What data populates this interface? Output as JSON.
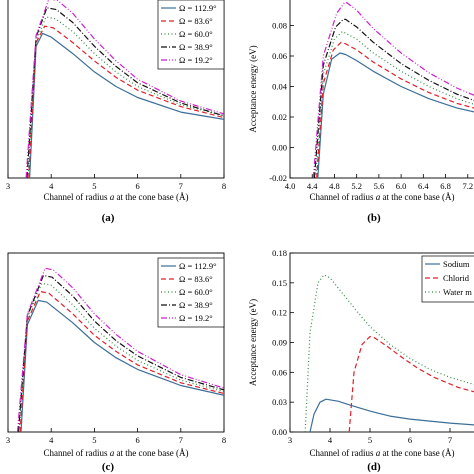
{
  "chart_data": [
    {
      "panel_label": "(a)",
      "type": "line",
      "xlabel_parts": [
        "Channel of radius ",
        "a",
        " at the cone base (Å)"
      ],
      "ylabel": "",
      "xlim": [
        3,
        8
      ],
      "ylim": [
        0,
        0.1
      ],
      "x_ticks": [
        3,
        4,
        5,
        6,
        7,
        8
      ],
      "x_tick_labels": [
        "3",
        "4",
        "5",
        "6",
        "7",
        "8"
      ],
      "y_ticks": [],
      "y_tick_labels": [],
      "legend": "top-right",
      "series": [
        {
          "name": "Ω = 112.9°",
          "color": "#3c6e98",
          "dash": "",
          "x": [
            3.5,
            3.65,
            3.8,
            4.0,
            4.5,
            5.0,
            5.5,
            6.0,
            7.0,
            8.0
          ],
          "y": [
            0.0,
            0.072,
            0.079,
            0.077,
            0.068,
            0.058,
            0.05,
            0.044,
            0.036,
            0.032
          ]
        },
        {
          "name": "Ω = 83.6°",
          "color": "#e0202a",
          "dash": "5,3",
          "x": [
            3.48,
            3.65,
            3.85,
            4.05,
            4.5,
            5.0,
            5.5,
            6.0,
            7.0,
            8.0
          ],
          "y": [
            0.0,
            0.074,
            0.083,
            0.082,
            0.074,
            0.064,
            0.055,
            0.048,
            0.039,
            0.033
          ]
        },
        {
          "name": "Ω = 60.0°",
          "color": "#2e8b3e",
          "dash": "1,2.5",
          "x": [
            3.46,
            3.65,
            3.88,
            4.1,
            4.5,
            5.0,
            5.5,
            6.0,
            7.0,
            8.0
          ],
          "y": [
            0.0,
            0.075,
            0.088,
            0.087,
            0.08,
            0.068,
            0.058,
            0.05,
            0.04,
            0.034
          ]
        },
        {
          "name": "Ω = 38.9°",
          "color": "#111111",
          "dash": "6,2,1,2",
          "x": [
            3.44,
            3.65,
            3.9,
            4.12,
            4.5,
            5.0,
            5.5,
            6.0,
            7.0,
            8.0
          ],
          "y": [
            0.0,
            0.077,
            0.093,
            0.092,
            0.085,
            0.072,
            0.061,
            0.052,
            0.041,
            0.034
          ]
        },
        {
          "name": "Ω = 19.2°",
          "color": "#cc22cc",
          "dash": "6,2,1,2,1,2",
          "x": [
            3.42,
            3.65,
            3.95,
            4.15,
            4.5,
            5.0,
            5.5,
            6.0,
            7.0,
            8.0
          ],
          "y": [
            0.0,
            0.078,
            0.098,
            0.097,
            0.09,
            0.076,
            0.064,
            0.054,
            0.042,
            0.035
          ]
        }
      ]
    },
    {
      "panel_label": "(b)",
      "type": "line",
      "xlabel_parts": [
        "Channel of radius ",
        "a",
        " at the cone base (Å)"
      ],
      "ylabel": "Acceptance energy (eV)",
      "xlim": [
        4.0,
        7.6
      ],
      "ylim": [
        -0.02,
        0.1
      ],
      "x_ticks": [
        4.0,
        4.4,
        4.8,
        5.2,
        5.6,
        6.0,
        6.4,
        6.8,
        7.2
      ],
      "x_tick_labels": [
        "4.0",
        "4.4",
        "4.8",
        "5.2",
        "5.6",
        "6.0",
        "6.4",
        "6.8",
        "7.2"
      ],
      "y_ticks": [
        -0.02,
        0.0,
        0.02,
        0.04,
        0.06,
        0.08,
        0.1
      ],
      "y_tick_labels": [
        "-0.02",
        "0.00",
        "0.02",
        "0.04",
        "0.06",
        "0.08",
        "0.1"
      ],
      "legend": "top-right",
      "series": [
        {
          "name": "",
          "color": "#3c6e98",
          "dash": "",
          "x": [
            4.5,
            4.6,
            4.75,
            4.9,
            5.0,
            5.2,
            5.5,
            6.0,
            6.5,
            7.0,
            7.6
          ],
          "y": [
            -0.02,
            0.035,
            0.058,
            0.062,
            0.061,
            0.057,
            0.05,
            0.04,
            0.032,
            0.026,
            0.021
          ]
        },
        {
          "name": "",
          "color": "#e0202a",
          "dash": "5,3",
          "x": [
            4.48,
            4.6,
            4.78,
            4.92,
            5.0,
            5.2,
            5.5,
            6.0,
            6.5,
            7.0,
            7.6
          ],
          "y": [
            -0.02,
            0.042,
            0.064,
            0.069,
            0.068,
            0.064,
            0.056,
            0.045,
            0.036,
            0.029,
            0.023
          ]
        },
        {
          "name": "",
          "color": "#2e8b3e",
          "dash": "1,2.5",
          "x": [
            4.46,
            4.6,
            4.8,
            4.94,
            5.0,
            5.2,
            5.5,
            6.0,
            6.5,
            7.0,
            7.6
          ],
          "y": [
            -0.02,
            0.048,
            0.071,
            0.076,
            0.075,
            0.071,
            0.062,
            0.05,
            0.04,
            0.032,
            0.025
          ]
        },
        {
          "name": "",
          "color": "#111111",
          "dash": "6,2,1,2",
          "x": [
            4.44,
            4.6,
            4.82,
            4.96,
            5.0,
            5.2,
            5.5,
            6.0,
            6.5,
            7.0,
            7.6
          ],
          "y": [
            -0.02,
            0.054,
            0.079,
            0.084,
            0.084,
            0.079,
            0.069,
            0.055,
            0.044,
            0.035,
            0.027
          ]
        },
        {
          "name": "",
          "color": "#cc22cc",
          "dash": "6,2,1,2,1,2",
          "x": [
            4.42,
            4.6,
            4.84,
            4.98,
            5.02,
            5.2,
            5.5,
            6.0,
            6.5,
            7.0,
            7.6
          ],
          "y": [
            -0.02,
            0.06,
            0.088,
            0.095,
            0.095,
            0.09,
            0.078,
            0.062,
            0.049,
            0.039,
            0.03
          ]
        }
      ]
    },
    {
      "panel_label": "(c)",
      "type": "line",
      "xlabel_parts": [
        "Channel of radius ",
        "a",
        " at the cone base (Å)"
      ],
      "ylabel": "",
      "xlim": [
        3,
        8
      ],
      "ylim": [
        0,
        0.2
      ],
      "x_ticks": [
        3,
        4,
        5,
        6,
        7,
        8
      ],
      "x_tick_labels": [
        "3",
        "4",
        "5",
        "6",
        "7",
        "8"
      ],
      "y_ticks": [],
      "y_tick_labels": [],
      "legend": "top-right",
      "series": [
        {
          "name": "Ω = 112.9°",
          "color": "#3c6e98",
          "dash": "",
          "x": [
            3.3,
            3.45,
            3.7,
            3.9,
            4.5,
            5.0,
            5.5,
            6.0,
            7.0,
            8.0
          ],
          "y": [
            0.0,
            0.12,
            0.147,
            0.145,
            0.122,
            0.1,
            0.083,
            0.07,
            0.052,
            0.041
          ]
        },
        {
          "name": "Ω = 83.6°",
          "color": "#e0202a",
          "dash": "5,3",
          "x": [
            3.28,
            3.45,
            3.75,
            3.95,
            4.5,
            5.0,
            5.5,
            6.0,
            7.0,
            8.0
          ],
          "y": [
            0.0,
            0.124,
            0.157,
            0.155,
            0.132,
            0.108,
            0.09,
            0.075,
            0.055,
            0.043
          ]
        },
        {
          "name": "Ω = 60.0°",
          "color": "#2e8b3e",
          "dash": "1,2.5",
          "x": [
            3.26,
            3.45,
            3.78,
            4.0,
            4.5,
            5.0,
            5.5,
            6.0,
            7.0,
            8.0
          ],
          "y": [
            0.0,
            0.128,
            0.166,
            0.164,
            0.142,
            0.116,
            0.096,
            0.08,
            0.058,
            0.045
          ]
        },
        {
          "name": "Ω = 38.9°",
          "color": "#111111",
          "dash": "6,2,1,2",
          "x": [
            3.24,
            3.45,
            3.82,
            4.02,
            4.5,
            5.0,
            5.5,
            6.0,
            7.0,
            8.0
          ],
          "y": [
            0.0,
            0.13,
            0.175,
            0.173,
            0.152,
            0.124,
            0.102,
            0.085,
            0.061,
            0.047
          ]
        },
        {
          "name": "Ω = 19.2°",
          "color": "#cc22cc",
          "dash": "6,2,1,2,1,2",
          "x": [
            3.22,
            3.45,
            3.86,
            4.05,
            4.5,
            5.0,
            5.5,
            6.0,
            7.0,
            8.0
          ],
          "y": [
            0.0,
            0.132,
            0.183,
            0.181,
            0.161,
            0.132,
            0.109,
            0.09,
            0.064,
            0.049
          ]
        }
      ]
    },
    {
      "panel_label": "(d)",
      "type": "line",
      "xlabel_parts": [
        "Channel of radius ",
        "a",
        " at the cone base (Å)"
      ],
      "ylabel": "Acceptance energy (eV)",
      "xlim": [
        3,
        8
      ],
      "ylim": [
        0,
        0.18
      ],
      "x_ticks": [
        3,
        4,
        5,
        6,
        7,
        8
      ],
      "x_tick_labels": [
        "3",
        "4",
        "5",
        "6",
        "7",
        "8"
      ],
      "y_ticks": [
        0.0,
        0.03,
        0.06,
        0.09,
        0.12,
        0.15,
        0.18
      ],
      "y_tick_labels": [
        "0.00",
        "0.03",
        "0.06",
        "0.09",
        "0.12",
        "0.15",
        "0.18"
      ],
      "legend": "top-right",
      "series": [
        {
          "name": "Sodium",
          "color": "#3c6e98",
          "dash": "",
          "x": [
            3.5,
            3.6,
            3.75,
            3.9,
            4.2,
            4.5,
            5.0,
            5.5,
            6.0,
            7.0,
            8.0
          ],
          "y": [
            0.0,
            0.018,
            0.03,
            0.033,
            0.031,
            0.027,
            0.021,
            0.016,
            0.013,
            0.009,
            0.006
          ]
        },
        {
          "name": "Chlorid",
          "color": "#e0202a",
          "dash": "5,3",
          "x": [
            4.48,
            4.6,
            4.8,
            5.0,
            5.1,
            5.4,
            5.8,
            6.2,
            6.6,
            7.2,
            8.0
          ],
          "y": [
            0.0,
            0.06,
            0.088,
            0.096,
            0.095,
            0.087,
            0.075,
            0.064,
            0.055,
            0.045,
            0.036
          ]
        },
        {
          "name": "Water m",
          "color": "#2e8b3e",
          "dash": "1,2.5",
          "x": [
            3.38,
            3.5,
            3.7,
            3.85,
            4.0,
            4.3,
            4.7,
            5.0,
            5.5,
            6.0,
            6.5,
            7.0,
            8.0
          ],
          "y": [
            0.0,
            0.1,
            0.15,
            0.158,
            0.155,
            0.14,
            0.12,
            0.106,
            0.088,
            0.074,
            0.063,
            0.055,
            0.043
          ]
        }
      ]
    }
  ]
}
